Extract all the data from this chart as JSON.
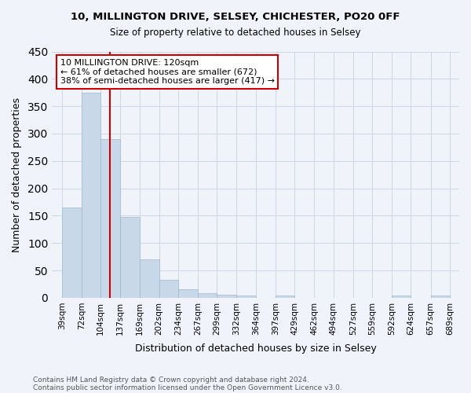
{
  "title1": "10, MILLINGTON DRIVE, SELSEY, CHICHESTER, PO20 0FF",
  "title2": "Size of property relative to detached houses in Selsey",
  "xlabel": "Distribution of detached houses by size in Selsey",
  "ylabel": "Number of detached properties",
  "footnote1": "Contains HM Land Registry data © Crown copyright and database right 2024.",
  "footnote2": "Contains public sector information licensed under the Open Government Licence v3.0.",
  "bin_edges": [
    39,
    72,
    104,
    137,
    169,
    202,
    234,
    267,
    299,
    332,
    364,
    397,
    429,
    462,
    494,
    527,
    559,
    592,
    624,
    657,
    689
  ],
  "bin_labels": [
    "39sqm",
    "72sqm",
    "104sqm",
    "137sqm",
    "169sqm",
    "202sqm",
    "234sqm",
    "267sqm",
    "299sqm",
    "332sqm",
    "364sqm",
    "397sqm",
    "429sqm",
    "462sqm",
    "494sqm",
    "527sqm",
    "559sqm",
    "592sqm",
    "624sqm",
    "657sqm",
    "689sqm"
  ],
  "bar_heights": [
    165,
    375,
    290,
    148,
    70,
    33,
    15,
    8,
    5,
    4,
    0,
    4,
    0,
    0,
    0,
    0,
    0,
    4,
    0,
    4
  ],
  "bar_color": "#c8d8e8",
  "bar_edge_color": "#a0b8cc",
  "grid_color": "#d0d8e8",
  "property_size": 120,
  "property_label": "10 MILLINGTON DRIVE: 120sqm",
  "annotation_line1": "← 61% of detached houses are smaller (672)",
  "annotation_line2": "38% of semi-detached houses are larger (417) →",
  "vline_color": "#cc0000",
  "ylim": [
    0,
    450
  ],
  "yticks": [
    0,
    50,
    100,
    150,
    200,
    250,
    300,
    350,
    400,
    450
  ],
  "background_color": "#f0f4fa"
}
